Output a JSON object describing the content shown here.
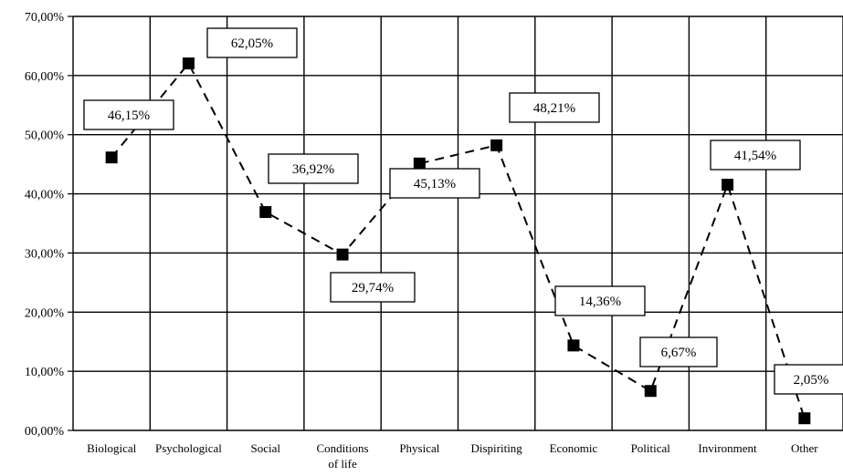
{
  "chart_data": {
    "type": "line",
    "categories": [
      "Biological",
      "Psychological",
      "Social",
      "Conditions of life",
      "Physical",
      "Dispiriting",
      "Economic",
      "Political",
      "Invironment",
      "Other"
    ],
    "category_lines": [
      [
        "Biological"
      ],
      [
        "Psychological"
      ],
      [
        "Social"
      ],
      [
        "Conditions",
        "of life"
      ],
      [
        "Physical"
      ],
      [
        "Dispiriting"
      ],
      [
        "Economic"
      ],
      [
        "Political"
      ],
      [
        "Invironment"
      ],
      [
        "Other"
      ]
    ],
    "values": [
      46.15,
      62.05,
      36.92,
      29.74,
      45.13,
      48.21,
      14.36,
      6.67,
      41.54,
      2.05
    ],
    "data_labels": [
      "46,15%",
      "62,05%",
      "36,92%",
      "29,74%",
      "45,13%",
      "48,21%",
      "14,36%",
      "6,67%",
      "41,54%",
      "2,05%"
    ],
    "y_ticks": [
      "00,00%",
      "10,00%",
      "20,00%",
      "30,00%",
      "40,00%",
      "50,00%",
      "60,00%",
      "70,00%"
    ],
    "ylim": [
      0,
      70
    ],
    "grid": true,
    "line_style": "dashed",
    "marker": "square",
    "series_color": "#000000",
    "title": "",
    "xlabel": "",
    "ylabel": ""
  }
}
